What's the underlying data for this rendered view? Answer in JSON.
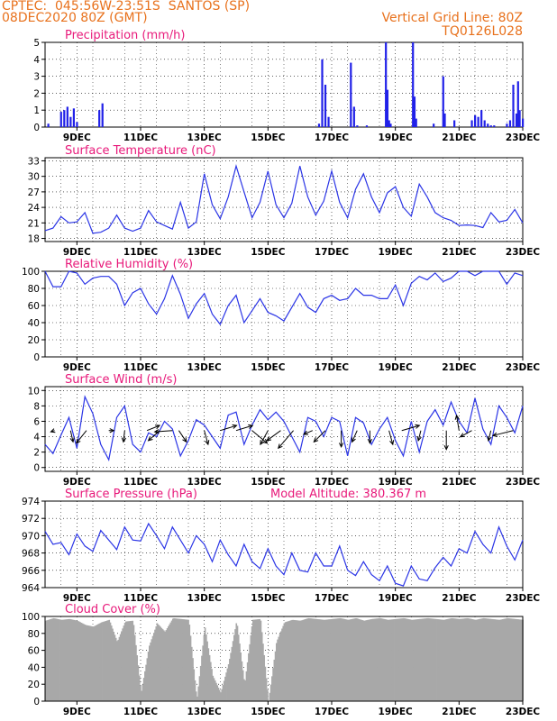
{
  "header": {
    "station": "CPTEC:  045:56W-23:51S  SANTOS (SP)",
    "run": "08DEC2020 80Z (GMT)",
    "grid_note": "Vertical Grid Line: 80Z",
    "model": "TQ0126L028"
  },
  "colors": {
    "line": "#2b35e6",
    "bar": "#2121e8",
    "cloud": "#a8a8a8",
    "title": "#e8197a",
    "header": "#e8711c",
    "arrow": "#000000"
  },
  "chart_data": [
    {
      "id": "precip",
      "type": "bar",
      "title": "Precipitation (mm/h)",
      "ylim": [
        0,
        5
      ],
      "yticks": [
        0,
        1,
        2,
        3,
        4,
        5
      ],
      "xticks": [
        "9DEC",
        "11DEC",
        "13DEC",
        "15DEC",
        "17DEC",
        "19DEC",
        "21DEC",
        "23DEC"
      ],
      "xlim_days": [
        8,
        23
      ],
      "grid": true,
      "series": [
        {
          "x": [
            8.1,
            8.5,
            8.6,
            8.7,
            8.8,
            8.9,
            9.0,
            9.7,
            9.8,
            16.6,
            16.7,
            16.8,
            16.9,
            17.6,
            17.7,
            17.8,
            18.1,
            18.7,
            18.75,
            18.8,
            18.85,
            19.55,
            19.6,
            19.65,
            20.2,
            20.5,
            20.55,
            20.85,
            21.4,
            21.5,
            21.6,
            21.7,
            21.8,
            21.9,
            22.0,
            22.1,
            22.5,
            22.6,
            22.7,
            22.8,
            22.85,
            22.9,
            23.0
          ],
          "values": [
            0.2,
            0.9,
            1.0,
            1.2,
            0.6,
            1.1,
            0.3,
            1.0,
            1.4,
            0.2,
            4.0,
            2.5,
            0.6,
            3.8,
            1.2,
            0.1,
            0.1,
            5.0,
            2.2,
            0.4,
            0.2,
            5.0,
            1.8,
            0.5,
            0.2,
            3.0,
            0.8,
            0.4,
            0.4,
            0.7,
            0.6,
            1.0,
            0.4,
            0.2,
            0.1,
            0.1,
            0.2,
            0.4,
            2.5,
            0.8,
            2.7,
            1.0,
            0.5
          ]
        }
      ]
    },
    {
      "id": "temp",
      "type": "line",
      "title": "Surface Temperature (nC)",
      "ylim": [
        17.4,
        33.6
      ],
      "yticks": [
        18,
        21,
        24,
        27,
        30,
        33
      ],
      "xticks": [
        "9DEC",
        "11DEC",
        "13DEC",
        "15DEC",
        "17DEC",
        "19DEC",
        "21DEC",
        "23DEC"
      ],
      "xlim_days": [
        8,
        23
      ],
      "grid": true,
      "series": [
        {
          "x": [
            8.0,
            8.25,
            8.5,
            8.75,
            9.0,
            9.25,
            9.5,
            9.75,
            10.0,
            10.25,
            10.5,
            10.75,
            11.0,
            11.25,
            11.5,
            11.75,
            12.0,
            12.25,
            12.5,
            12.75,
            13.0,
            13.25,
            13.5,
            13.75,
            14.0,
            14.25,
            14.5,
            14.75,
            15.0,
            15.25,
            15.5,
            15.75,
            16.0,
            16.25,
            16.5,
            16.75,
            17.0,
            17.25,
            17.5,
            17.75,
            18.0,
            18.25,
            18.5,
            18.75,
            19.0,
            19.25,
            19.5,
            19.75,
            20.0,
            20.25,
            20.5,
            20.75,
            21.0,
            21.25,
            21.5,
            21.75,
            22.0,
            22.25,
            22.5,
            22.75,
            23.0
          ],
          "values": [
            19.5,
            20.0,
            22.2,
            21.0,
            21.2,
            23.0,
            19.0,
            19.2,
            20.0,
            22.5,
            20.0,
            19.4,
            20.0,
            23.4,
            21.2,
            20.5,
            19.8,
            25.0,
            20.0,
            21.2,
            30.5,
            24.5,
            21.8,
            26.0,
            32.0,
            27.0,
            22.0,
            25.0,
            31.0,
            24.5,
            22.0,
            24.8,
            32.0,
            26.0,
            22.5,
            25.2,
            31.0,
            25.0,
            22.0,
            27.5,
            30.5,
            26.0,
            23.0,
            26.8,
            28.0,
            24.0,
            22.3,
            28.5,
            26.0,
            23.0,
            22.0,
            21.5,
            20.5,
            20.6,
            20.5,
            20.1,
            23.0,
            21.2,
            21.5,
            23.6,
            21.0
          ]
        }
      ]
    },
    {
      "id": "rh",
      "type": "line",
      "title": "Relative Humidity (%)",
      "ylim": [
        0,
        100
      ],
      "yticks": [
        0,
        20,
        40,
        60,
        80,
        100
      ],
      "xticks": [
        "9DEC",
        "11DEC",
        "13DEC",
        "15DEC",
        "17DEC",
        "19DEC",
        "21DEC",
        "23DEC"
      ],
      "xlim_days": [
        8,
        23
      ],
      "grid": true,
      "series": [
        {
          "x": [
            8.0,
            8.25,
            8.5,
            8.75,
            9.0,
            9.25,
            9.5,
            9.75,
            10.0,
            10.25,
            10.5,
            10.75,
            11.0,
            11.25,
            11.5,
            11.75,
            12.0,
            12.25,
            12.5,
            12.75,
            13.0,
            13.25,
            13.5,
            13.75,
            14.0,
            14.25,
            14.5,
            14.75,
            15.0,
            15.25,
            15.5,
            15.75,
            16.0,
            16.25,
            16.5,
            16.75,
            17.0,
            17.25,
            17.5,
            17.75,
            18.0,
            18.25,
            18.5,
            18.75,
            19.0,
            19.25,
            19.5,
            19.75,
            20.0,
            20.25,
            20.5,
            20.75,
            21.0,
            21.25,
            21.5,
            21.75,
            22.0,
            22.25,
            22.5,
            22.75,
            23.0
          ],
          "values": [
            100,
            82,
            82,
            100,
            98,
            85,
            92,
            94,
            94,
            85,
            60,
            75,
            80,
            62,
            50,
            68,
            95,
            73,
            45,
            62,
            74,
            50,
            38,
            60,
            72,
            40,
            54,
            68,
            52,
            48,
            42,
            58,
            74,
            58,
            52,
            68,
            72,
            66,
            68,
            80,
            72,
            72,
            68,
            68,
            84,
            60,
            86,
            94,
            90,
            98,
            88,
            92,
            100,
            100,
            95,
            100,
            100,
            100,
            85,
            98,
            95
          ]
        }
      ]
    },
    {
      "id": "wind",
      "type": "line",
      "title": "Surface Wind (m/s)",
      "ylim": [
        -0.5,
        10.5
      ],
      "yticks": [
        0,
        2,
        4,
        6,
        8,
        10
      ],
      "xticks": [
        "9DEC",
        "11DEC",
        "13DEC",
        "15DEC",
        "17DEC",
        "19DEC",
        "21DEC",
        "23DEC"
      ],
      "xlim_days": [
        8,
        23
      ],
      "grid": true,
      "series": [
        {
          "x": [
            8.0,
            8.25,
            8.5,
            8.75,
            9.0,
            9.25,
            9.5,
            9.75,
            10.0,
            10.25,
            10.5,
            10.75,
            11.0,
            11.25,
            11.5,
            11.75,
            12.0,
            12.25,
            12.5,
            12.75,
            13.0,
            13.25,
            13.5,
            13.75,
            14.0,
            14.25,
            14.5,
            14.75,
            15.0,
            15.25,
            15.5,
            15.75,
            16.0,
            16.25,
            16.5,
            16.75,
            17.0,
            17.25,
            17.5,
            17.75,
            18.0,
            18.25,
            18.5,
            18.75,
            19.0,
            19.25,
            19.5,
            19.75,
            20.0,
            20.25,
            20.5,
            20.75,
            21.0,
            21.25,
            21.5,
            21.75,
            22.0,
            22.25,
            22.5,
            22.75,
            23.0
          ],
          "values": [
            3.0,
            1.8,
            4.2,
            6.5,
            2.5,
            9.2,
            7.0,
            3.0,
            1.0,
            6.5,
            8.0,
            3.0,
            2.0,
            4.5,
            4.0,
            6.0,
            5.0,
            1.5,
            3.5,
            6.2,
            5.5,
            4.0,
            2.5,
            6.8,
            7.2,
            3.0,
            5.5,
            7.5,
            6.2,
            7.2,
            6.0,
            4.0,
            2.0,
            6.5,
            6.0,
            4.0,
            6.5,
            6.0,
            1.5,
            6.5,
            5.8,
            3.0,
            5.0,
            6.5,
            3.5,
            1.5,
            6.0,
            2.0,
            6.0,
            7.5,
            5.5,
            8.5,
            6.0,
            4.5,
            9.0,
            5.0,
            3.0,
            8.0,
            6.5,
            4.5,
            8.0
          ]
        }
      ],
      "vectors": {
        "x": [
          8.3,
          8.8,
          9.3,
          10.0,
          10.5,
          11.2,
          11.6,
          12.0,
          12.2,
          13.0,
          13.5,
          14.0,
          14.5,
          15.0,
          15.4,
          15.8,
          16.4,
          16.8,
          17.3,
          17.8,
          18.2,
          18.8,
          19.2,
          19.8,
          20.6,
          21.0,
          21.4,
          22.0,
          22.7
        ],
        "u": [
          -0.3,
          0.2,
          -0.8,
          0.4,
          -0.1,
          1.0,
          -0.9,
          -1.4,
          0.6,
          0.3,
          1.3,
          1.3,
          1.2,
          -0.6,
          -1.1,
          -1.2,
          -0.7,
          -0.9,
          0.0,
          -0.4,
          0.0,
          0.3,
          1.4,
          -0.2,
          0.0,
          -0.2,
          -0.9,
          -0.2,
          -1.6
        ],
        "v": [
          -0.1,
          -0.9,
          -1.0,
          0.0,
          -0.9,
          0.4,
          -0.8,
          -0.1,
          -0.9,
          -1.1,
          0.4,
          0.4,
          -1.0,
          -1.1,
          -0.8,
          -1.4,
          -0.3,
          -0.9,
          -1.3,
          -0.9,
          -1.0,
          -1.1,
          0.4,
          -0.8,
          -1.5,
          1.2,
          -0.5,
          -0.8,
          -0.4
        ]
      }
    },
    {
      "id": "pres",
      "type": "line",
      "title": "Surface Pressure (hPa)",
      "subtitle": "Model Altitude: 380.367  m",
      "ylim": [
        964,
        974
      ],
      "yticks": [
        964,
        966,
        968,
        970,
        972,
        974
      ],
      "xticks": [
        "9DEC",
        "11DEC",
        "13DEC",
        "15DEC",
        "17DEC",
        "19DEC",
        "21DEC",
        "23DEC"
      ],
      "xlim_days": [
        8,
        23
      ],
      "grid": true,
      "series": [
        {
          "x": [
            8.0,
            8.25,
            8.5,
            8.75,
            9.0,
            9.25,
            9.5,
            9.75,
            10.0,
            10.25,
            10.5,
            10.75,
            11.0,
            11.25,
            11.5,
            11.75,
            12.0,
            12.25,
            12.5,
            12.75,
            13.0,
            13.25,
            13.5,
            13.75,
            14.0,
            14.25,
            14.5,
            14.75,
            15.0,
            15.25,
            15.5,
            15.75,
            16.0,
            16.25,
            16.5,
            16.75,
            17.0,
            17.25,
            17.5,
            17.75,
            18.0,
            18.25,
            18.5,
            18.75,
            19.0,
            19.25,
            19.5,
            19.75,
            20.0,
            20.25,
            20.5,
            20.75,
            21.0,
            21.25,
            21.5,
            21.75,
            22.0,
            22.25,
            22.5,
            22.75,
            23.0
          ],
          "values": [
            970.5,
            969.0,
            969.2,
            967.8,
            970.2,
            968.8,
            968.2,
            970.6,
            969.5,
            968.4,
            971.0,
            969.5,
            969.4,
            971.4,
            970.0,
            968.5,
            971.0,
            969.5,
            968.0,
            970.0,
            969.0,
            967.0,
            969.5,
            967.8,
            966.5,
            969.0,
            967.0,
            966.2,
            968.5,
            966.5,
            965.5,
            968.0,
            966.0,
            965.8,
            968.0,
            966.5,
            966.5,
            968.8,
            966.0,
            965.4,
            967.0,
            965.5,
            964.8,
            966.5,
            964.5,
            964.2,
            966.5,
            965.0,
            964.8,
            966.3,
            967.5,
            966.5,
            968.5,
            968.0,
            970.5,
            969.0,
            968.0,
            971.0,
            968.8,
            967.2,
            969.5
          ]
        }
      ]
    },
    {
      "id": "cloud",
      "type": "area",
      "title": "Cloud Cover (%)",
      "ylim": [
        0,
        100
      ],
      "yticks": [
        0,
        20,
        40,
        60,
        80,
        100
      ],
      "xticks": [
        "9DEC",
        "11DEC",
        "13DEC",
        "15DEC",
        "17DEC",
        "19DEC",
        "21DEC",
        "23DEC"
      ],
      "xlim_days": [
        8,
        23
      ],
      "grid": true,
      "series": [
        {
          "x": [
            8.0,
            8.25,
            8.5,
            8.75,
            9.0,
            9.25,
            9.5,
            9.75,
            10.0,
            10.25,
            10.5,
            10.75,
            11.0,
            11.25,
            11.5,
            11.75,
            12.0,
            12.25,
            12.5,
            12.75,
            13.0,
            13.25,
            13.5,
            13.75,
            14.0,
            14.25,
            14.5,
            14.75,
            15.0,
            15.25,
            15.5,
            15.75,
            16.0,
            16.25,
            16.5,
            16.75,
            17.0,
            17.25,
            17.5,
            17.75,
            18.0,
            18.25,
            18.5,
            18.75,
            19.0,
            19.25,
            19.5,
            19.75,
            20.0,
            20.25,
            20.5,
            20.75,
            21.0,
            21.25,
            21.5,
            21.75,
            22.0,
            22.25,
            22.5,
            22.75,
            23.0
          ],
          "values": [
            95,
            98,
            96,
            97,
            95,
            90,
            88,
            93,
            96,
            70,
            94,
            95,
            10,
            65,
            92,
            82,
            98,
            97,
            96,
            2,
            88,
            30,
            10,
            45,
            95,
            20,
            96,
            97,
            0,
            70,
            93,
            96,
            95,
            98,
            97,
            96,
            97,
            98,
            96,
            98,
            95,
            97,
            98,
            96,
            97,
            98,
            96,
            97,
            98,
            97,
            96,
            98,
            97,
            98,
            96,
            98,
            97,
            96,
            98,
            97,
            96
          ]
        }
      ]
    }
  ]
}
